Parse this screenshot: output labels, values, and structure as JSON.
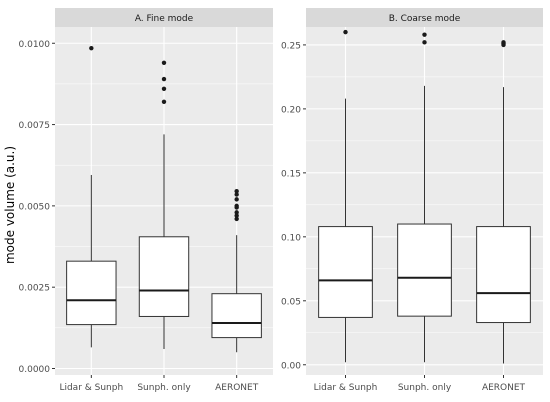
{
  "figure": {
    "ylabel": "mode volume (a.u.)"
  },
  "colors": {
    "panel_bg": "#ebebeb",
    "grid": "#ffffff",
    "strip_bg": "#d9d9d9",
    "box_fill": "#ffffff",
    "box_line": "#333333",
    "text": "#4d4d4d"
  },
  "chart_data": [
    {
      "type": "box",
      "title": "A. Fine mode",
      "xlabel": "",
      "ylabel": "mode volume (a.u.)",
      "ylim": [
        -0.0002,
        0.0105
      ],
      "yticks": [
        0.0,
        0.0025,
        0.005,
        0.0075,
        0.01
      ],
      "ytick_labels": [
        "0.0000",
        "0.0025",
        "0.0050",
        "0.0075",
        "0.0100"
      ],
      "categories": [
        "Lidar & Sunph",
        "Sunph. only",
        "AERONET"
      ],
      "boxes": [
        {
          "min": 0.00065,
          "q1": 0.00135,
          "median": 0.0021,
          "q3": 0.0033,
          "max": 0.00595,
          "outliers": [
            0.00985
          ]
        },
        {
          "min": 0.0006,
          "q1": 0.0016,
          "median": 0.0024,
          "q3": 0.00405,
          "max": 0.0072,
          "outliers": [
            0.0082,
            0.0086,
            0.0089,
            0.0094
          ]
        },
        {
          "min": 0.0005,
          "q1": 0.00095,
          "median": 0.0014,
          "q3": 0.0023,
          "max": 0.0041,
          "outliers": [
            0.0046,
            0.0047,
            0.0048,
            0.00495,
            0.005,
            0.0052,
            0.00535,
            0.00545
          ]
        }
      ]
    },
    {
      "type": "box",
      "title": "B. Coarse mode",
      "xlabel": "",
      "ylabel": "",
      "ylim": [
        -0.008,
        0.264
      ],
      "yticks": [
        0.0,
        0.05,
        0.1,
        0.15,
        0.2,
        0.25
      ],
      "ytick_labels": [
        "0.00",
        "0.05",
        "0.10",
        "0.15",
        "0.20",
        "0.25"
      ],
      "categories": [
        "Lidar & Sunph",
        "Sunph. only",
        "AERONET"
      ],
      "boxes": [
        {
          "min": 0.002,
          "q1": 0.037,
          "median": 0.066,
          "q3": 0.108,
          "max": 0.208,
          "outliers": [
            0.26
          ]
        },
        {
          "min": 0.002,
          "q1": 0.038,
          "median": 0.068,
          "q3": 0.11,
          "max": 0.218,
          "outliers": [
            0.252,
            0.258
          ]
        },
        {
          "min": 0.001,
          "q1": 0.033,
          "median": 0.056,
          "q3": 0.108,
          "max": 0.217,
          "outliers": [
            0.25,
            0.251,
            0.252
          ]
        }
      ]
    }
  ]
}
